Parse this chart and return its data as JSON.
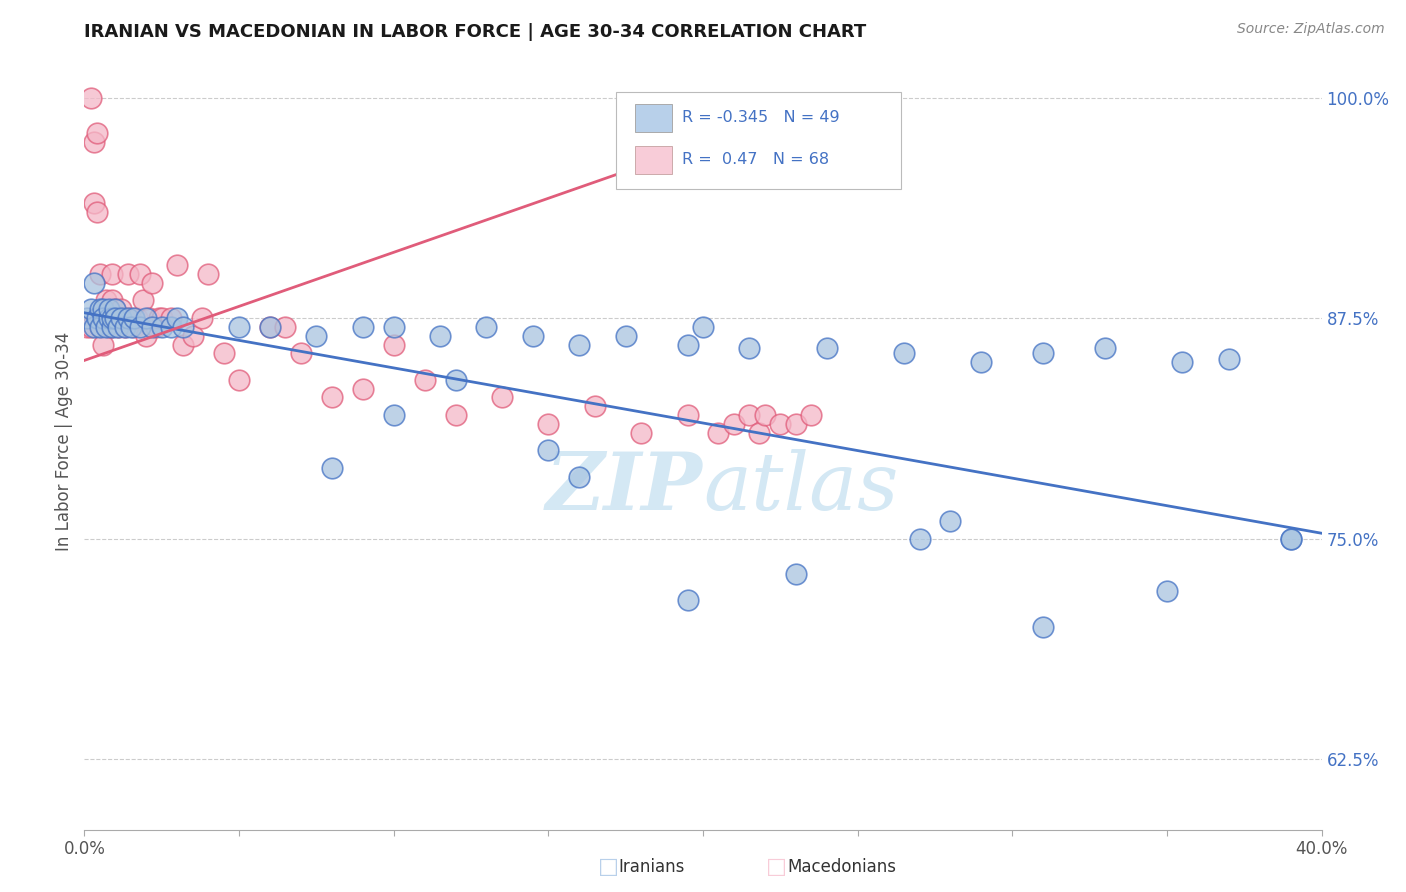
{
  "title": "IRANIAN VS MACEDONIAN IN LABOR FORCE | AGE 30-34 CORRELATION CHART",
  "source_text": "Source: ZipAtlas.com",
  "xlabel_iranians": "Iranians",
  "xlabel_macedonians": "Macedonians",
  "ylabel": "In Labor Force | Age 30-34",
  "xlim": [
    0.0,
    0.4
  ],
  "ylim": [
    0.585,
    1.025
  ],
  "xticks": [
    0.0,
    0.05,
    0.1,
    0.15,
    0.2,
    0.25,
    0.3,
    0.35,
    0.4
  ],
  "xticklabels": [
    "0.0%",
    "",
    "",
    "",
    "",
    "",
    "",
    "",
    "40.0%"
  ],
  "yticks": [
    0.625,
    0.75,
    0.875,
    1.0
  ],
  "yticklabels": [
    "62.5%",
    "75.0%",
    "87.5%",
    "100.0%"
  ],
  "iranian_R": -0.345,
  "iranian_N": 49,
  "macedonian_R": 0.47,
  "macedonian_N": 68,
  "iranian_color": "#a8c4e0",
  "macedonian_color": "#f4b8c8",
  "iranian_edge_color": "#4472C4",
  "macedonian_edge_color": "#E05C7A",
  "iranian_line_color": "#4472C4",
  "macedonian_line_color": "#E05C7A",
  "legend_box_iranian": "#b8d0ea",
  "legend_box_macedonian": "#f8ccd8",
  "watermark_color": "#d4e8f4",
  "iranians_x": [
    0.001,
    0.002,
    0.003,
    0.003,
    0.004,
    0.005,
    0.005,
    0.006,
    0.006,
    0.007,
    0.008,
    0.008,
    0.009,
    0.009,
    0.01,
    0.01,
    0.011,
    0.012,
    0.013,
    0.014,
    0.015,
    0.016,
    0.018,
    0.02,
    0.022,
    0.025,
    0.028,
    0.03,
    0.032,
    0.05,
    0.06,
    0.075,
    0.09,
    0.1,
    0.115,
    0.13,
    0.145,
    0.16,
    0.175,
    0.195,
    0.215,
    0.24,
    0.265,
    0.29,
    0.31,
    0.33,
    0.355,
    0.37,
    0.39
  ],
  "iranians_y": [
    0.875,
    0.88,
    0.87,
    0.895,
    0.875,
    0.88,
    0.87,
    0.88,
    0.875,
    0.87,
    0.875,
    0.88,
    0.87,
    0.875,
    0.88,
    0.875,
    0.87,
    0.875,
    0.87,
    0.875,
    0.87,
    0.875,
    0.87,
    0.875,
    0.87,
    0.87,
    0.87,
    0.875,
    0.87,
    0.87,
    0.87,
    0.865,
    0.87,
    0.87,
    0.865,
    0.87,
    0.865,
    0.86,
    0.865,
    0.86,
    0.858,
    0.858,
    0.855,
    0.85,
    0.855,
    0.858,
    0.85,
    0.852,
    0.75
  ],
  "iranians_y_outliers": [
    [
      0.1,
      0.82
    ],
    [
      0.15,
      0.8
    ],
    [
      0.16,
      0.785
    ],
    [
      0.195,
      0.715
    ],
    [
      0.23,
      0.73
    ],
    [
      0.27,
      0.75
    ],
    [
      0.31,
      0.7
    ],
    [
      0.35,
      0.72
    ],
    [
      0.12,
      0.84
    ],
    [
      0.08,
      0.79
    ],
    [
      0.2,
      0.87
    ],
    [
      0.28,
      0.76
    ],
    [
      0.39,
      0.75
    ]
  ],
  "macedonians_x": [
    0.001,
    0.002,
    0.002,
    0.003,
    0.003,
    0.004,
    0.004,
    0.005,
    0.005,
    0.005,
    0.006,
    0.006,
    0.007,
    0.007,
    0.008,
    0.008,
    0.009,
    0.009,
    0.009,
    0.01,
    0.01,
    0.011,
    0.011,
    0.012,
    0.012,
    0.013,
    0.013,
    0.014,
    0.015,
    0.016,
    0.017,
    0.018,
    0.019,
    0.02,
    0.021,
    0.022,
    0.023,
    0.024,
    0.025,
    0.028,
    0.03,
    0.032,
    0.035,
    0.038,
    0.04,
    0.045,
    0.05,
    0.06,
    0.065,
    0.07,
    0.08,
    0.09,
    0.1,
    0.11,
    0.12,
    0.135,
    0.15,
    0.165,
    0.18,
    0.195,
    0.205,
    0.21,
    0.215,
    0.218,
    0.22,
    0.225,
    0.23,
    0.235
  ],
  "macedonians_y": [
    0.87,
    0.87,
    1.0,
    0.94,
    0.975,
    0.98,
    0.935,
    0.875,
    0.87,
    0.9,
    0.875,
    0.86,
    0.875,
    0.885,
    0.87,
    0.875,
    0.9,
    0.885,
    0.87,
    0.88,
    0.875,
    0.875,
    0.87,
    0.88,
    0.875,
    0.875,
    0.87,
    0.9,
    0.875,
    0.87,
    0.875,
    0.9,
    0.885,
    0.865,
    0.875,
    0.895,
    0.87,
    0.875,
    0.875,
    0.875,
    0.905,
    0.86,
    0.865,
    0.875,
    0.9,
    0.855,
    0.84,
    0.87,
    0.87,
    0.855,
    0.83,
    0.835,
    0.86,
    0.84,
    0.82,
    0.83,
    0.815,
    0.825,
    0.81,
    0.82,
    0.81,
    0.815,
    0.82,
    0.81,
    0.82,
    0.815,
    0.815,
    0.82
  ],
  "iranian_line_x": [
    0.0,
    0.4
  ],
  "iranian_line_y": [
    0.878,
    0.753
  ],
  "macedonian_line_x": [
    0.0,
    0.235
  ],
  "macedonian_line_y": [
    0.851,
    0.995
  ]
}
